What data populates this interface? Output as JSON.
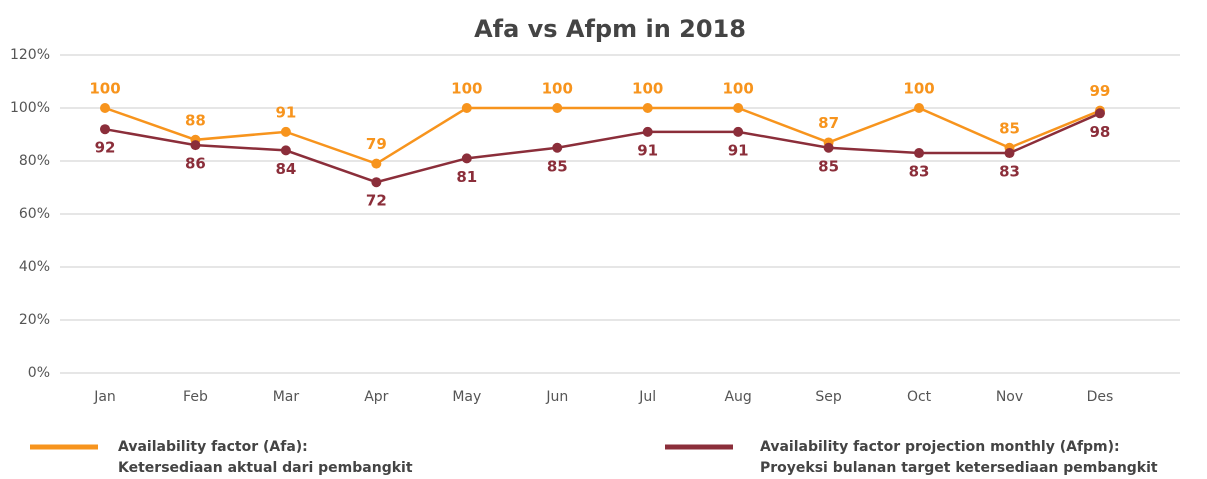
{
  "chart_data": {
    "type": "line",
    "title": "Afa vs Afpm in 2018",
    "categories": [
      "Jan",
      "Feb",
      "Mar",
      "Apr",
      "May",
      "Jun",
      "Jul",
      "Aug",
      "Sep",
      "Oct",
      "Nov",
      "Des"
    ],
    "series": [
      {
        "name": "Availability factor (Afa):",
        "description": "Ketersediaan aktual dari pembangkit",
        "color": "#f7941d",
        "values": [
          100,
          88,
          91,
          79,
          100,
          100,
          100,
          100,
          87,
          100,
          85,
          99
        ]
      },
      {
        "name": "Availability factor projection monthly (Afpm):",
        "description": "Proyeksi bulanan target ketersediaan pembangkit",
        "color": "#8b2e3a",
        "values": [
          92,
          86,
          84,
          72,
          81,
          85,
          91,
          91,
          85,
          83,
          83,
          98
        ]
      }
    ],
    "ylim": [
      0,
      120
    ],
    "yticks": [
      {
        "value": 0,
        "label": "0%"
      },
      {
        "value": 20,
        "label": "20%"
      },
      {
        "value": 40,
        "label": "40%"
      },
      {
        "value": 60,
        "label": "60%"
      },
      {
        "value": 80,
        "label": "80%"
      },
      {
        "value": 100,
        "label": "100%"
      },
      {
        "value": 120,
        "label": "120%"
      }
    ],
    "grid": true
  }
}
